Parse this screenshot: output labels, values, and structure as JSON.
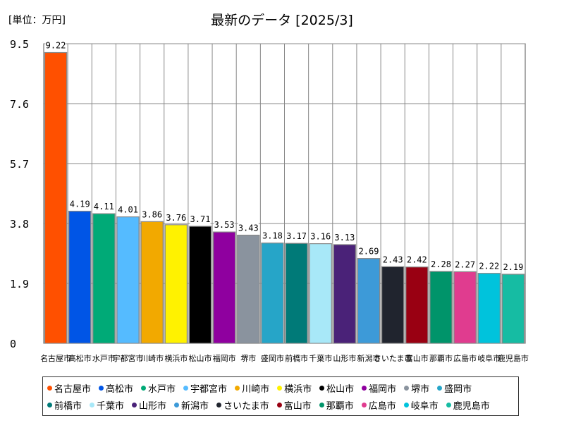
{
  "header": {
    "unit_label": "[単位：万円]",
    "title": "最新のデータ [2025/3]"
  },
  "chart_data": {
    "type": "bar",
    "title": "最新のデータ [2025/3]",
    "unit": "[単位：万円]",
    "categories": [
      "名古屋市",
      "高松市",
      "水戸市",
      "宇都宮市",
      "川崎市",
      "横浜市",
      "松山市",
      "福岡市",
      "堺市",
      "盛岡市",
      "前橋市",
      "千葉市",
      "山形市",
      "新潟市",
      "さいたま市",
      "富山市",
      "那覇市",
      "広島市",
      "岐阜市",
      "鹿児島市"
    ],
    "values": [
      9.22,
      4.19,
      4.11,
      4.01,
      3.86,
      3.76,
      3.71,
      3.53,
      3.43,
      3.18,
      3.17,
      3.16,
      3.13,
      2.69,
      2.43,
      2.42,
      2.28,
      2.27,
      2.22,
      2.19
    ],
    "value_labels": [
      "9.22",
      "4.19",
      "4.11",
      "4.01",
      "3.86",
      "3.76",
      "3.71",
      "3.53",
      "3.43",
      "3.18",
      "3.17",
      "3.16",
      "3.13",
      "2.69",
      "2.43",
      "2.42",
      "2.28",
      "2.27",
      "2.22",
      "2.19"
    ],
    "colors": [
      "#ff5000",
      "#0055e6",
      "#00aa77",
      "#55bbff",
      "#f2a900",
      "#fff200",
      "#000000",
      "#8f009f",
      "#8a939e",
      "#26a5c8",
      "#007a78",
      "#a8e8f8",
      "#4a2278",
      "#3d9ad8",
      "#20242e",
      "#990012",
      "#00946a",
      "#e03c8f",
      "#00c3dc",
      "#16bca3"
    ],
    "yticks": [
      "0",
      "1.9",
      "3.8",
      "5.7",
      "7.6",
      "9.5"
    ],
    "ylim": [
      0,
      9.5
    ],
    "grid": true,
    "legend": "bottom"
  }
}
